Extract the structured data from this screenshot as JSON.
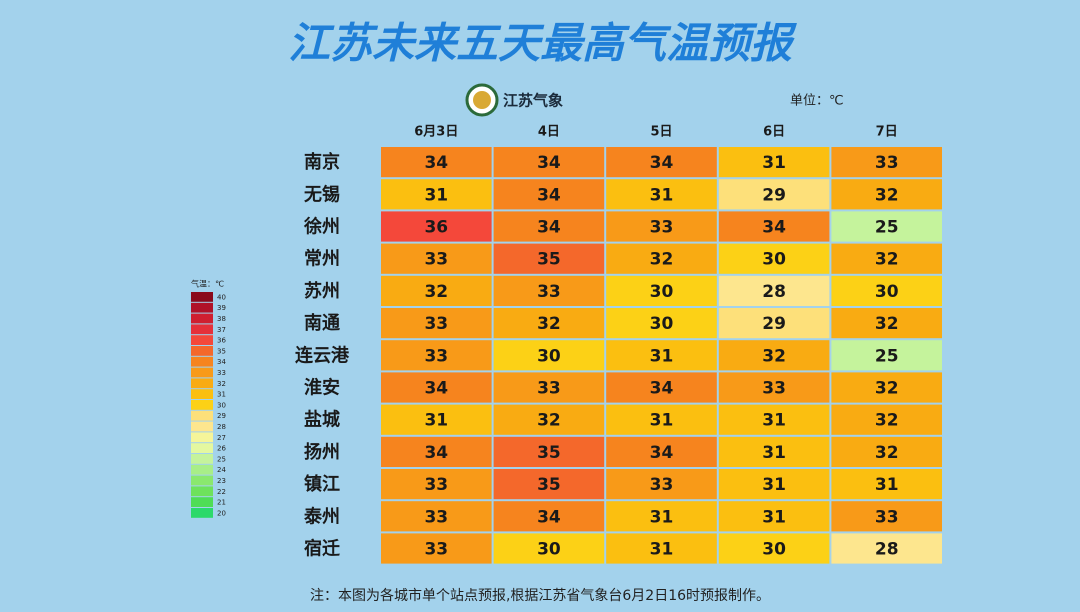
{
  "chart_data": {
    "type": "heatmap",
    "title": "江苏未来五天最高气温预报",
    "source": "江苏气象",
    "unit": "单位：℃",
    "legend_title": "气温：℃",
    "note": "注：本图为各城市单个站点预报,根据江苏省气象台6月2日16时预报制作。",
    "x": [
      "6月3日",
      "4日",
      "5日",
      "6日",
      "7日"
    ],
    "y": [
      "南京",
      "无锡",
      "徐州",
      "常州",
      "苏州",
      "南通",
      "连云港",
      "淮安",
      "盐城",
      "扬州",
      "镇江",
      "泰州",
      "宿迁"
    ],
    "values": [
      [
        34,
        34,
        34,
        31,
        33
      ],
      [
        31,
        34,
        31,
        29,
        32
      ],
      [
        36,
        34,
        33,
        34,
        25
      ],
      [
        33,
        35,
        32,
        30,
        32
      ],
      [
        32,
        33,
        30,
        28,
        30
      ],
      [
        33,
        32,
        30,
        29,
        32
      ],
      [
        33,
        30,
        31,
        32,
        25
      ],
      [
        34,
        33,
        34,
        33,
        32
      ],
      [
        31,
        32,
        31,
        31,
        32
      ],
      [
        34,
        35,
        34,
        31,
        32
      ],
      [
        33,
        35,
        33,
        31,
        31
      ],
      [
        33,
        34,
        31,
        31,
        33
      ],
      [
        33,
        30,
        31,
        30,
        28
      ]
    ],
    "colorscale": {
      "ticks": [
        40,
        39,
        38,
        37,
        36,
        35,
        34,
        33,
        32,
        31,
        30,
        29,
        28,
        27,
        26,
        25,
        24,
        23,
        22,
        21,
        20
      ],
      "colors": [
        "#8a0a1c",
        "#b01228",
        "#cf1f30",
        "#e5303a",
        "#f4483a",
        "#f4682b",
        "#f6841e",
        "#f89a18",
        "#f9ab12",
        "#fbbf10",
        "#fcd116",
        "#fde07a",
        "#fde68e",
        "#f5f59a",
        "#e4f8a0",
        "#c5f39c",
        "#a8ee88",
        "#8ae86e",
        "#6ee25c",
        "#4fdd55",
        "#2cd96a"
      ]
    }
  }
}
